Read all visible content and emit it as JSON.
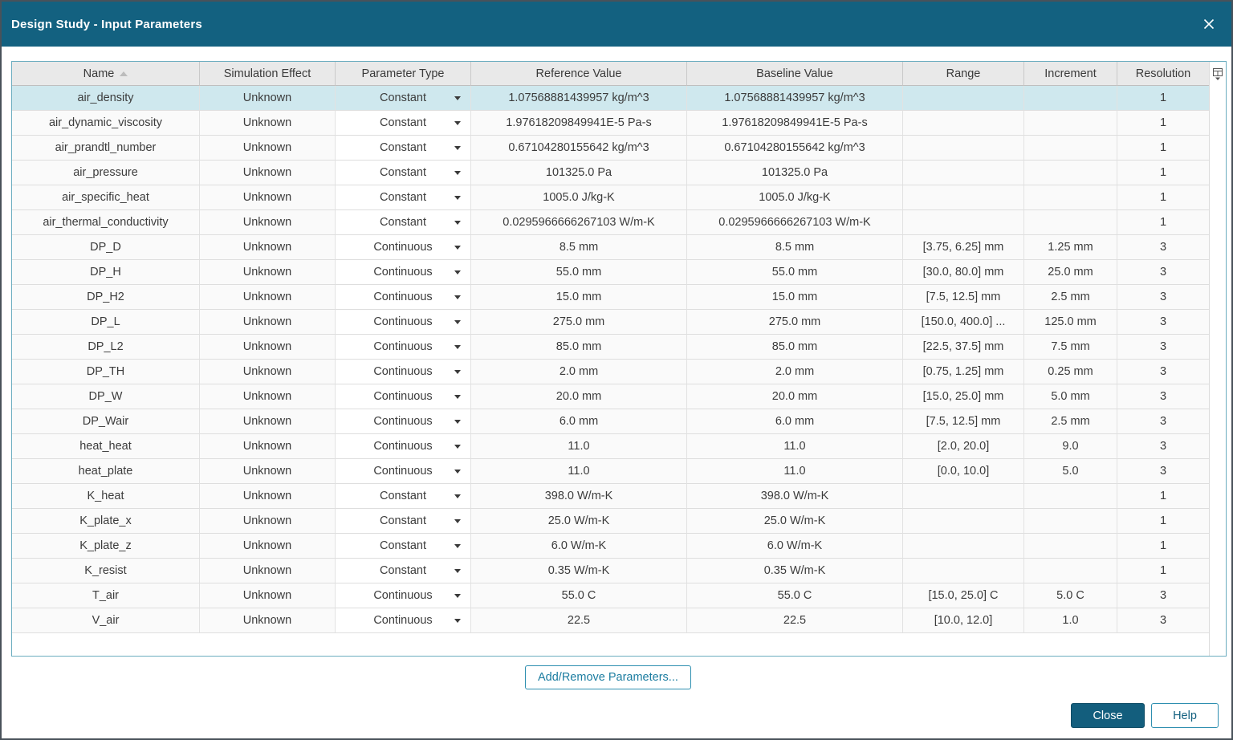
{
  "window": {
    "title": "Design Study - Input Parameters"
  },
  "colors": {
    "titlebar": "#136180",
    "header_bg": "#e9e9e9",
    "row_bg": "#fafafa",
    "selected_row_bg": "#cfe8ee",
    "table_border": "#6cadc0",
    "accent_teal": "#135e7d",
    "button_border": "#2e8fb0",
    "button_text": "#1b7ca0"
  },
  "icons": {
    "close": "close-icon",
    "sort_ascending": "sort-ascending-icon",
    "dropdown": "chevron-down-icon",
    "column_chooser": "column-chooser-icon"
  },
  "table": {
    "columns": [
      {
        "label": "Name",
        "sorted": "asc"
      },
      {
        "label": "Simulation Effect"
      },
      {
        "label": "Parameter Type"
      },
      {
        "label": "Reference Value"
      },
      {
        "label": "Baseline Value"
      },
      {
        "label": "Range"
      },
      {
        "label": "Increment"
      },
      {
        "label": "Resolution"
      }
    ],
    "rows": [
      {
        "name": "air_density",
        "simulation_effect": "Unknown",
        "parameter_type": "Constant",
        "reference_value": "1.07568881439957 kg/m^3",
        "baseline_value": "1.07568881439957 kg/m^3",
        "range": "",
        "increment": "",
        "resolution": "1",
        "selected": true
      },
      {
        "name": "air_dynamic_viscosity",
        "simulation_effect": "Unknown",
        "parameter_type": "Constant",
        "reference_value": "1.97618209849941E-5 Pa-s",
        "baseline_value": "1.97618209849941E-5 Pa-s",
        "range": "",
        "increment": "",
        "resolution": "1",
        "selected": false
      },
      {
        "name": "air_prandtl_number",
        "simulation_effect": "Unknown",
        "parameter_type": "Constant",
        "reference_value": "0.67104280155642 kg/m^3",
        "baseline_value": "0.67104280155642 kg/m^3",
        "range": "",
        "increment": "",
        "resolution": "1",
        "selected": false
      },
      {
        "name": "air_pressure",
        "simulation_effect": "Unknown",
        "parameter_type": "Constant",
        "reference_value": "101325.0 Pa",
        "baseline_value": "101325.0 Pa",
        "range": "",
        "increment": "",
        "resolution": "1",
        "selected": false
      },
      {
        "name": "air_specific_heat",
        "simulation_effect": "Unknown",
        "parameter_type": "Constant",
        "reference_value": "1005.0 J/kg-K",
        "baseline_value": "1005.0 J/kg-K",
        "range": "",
        "increment": "",
        "resolution": "1",
        "selected": false
      },
      {
        "name": "air_thermal_conductivity",
        "simulation_effect": "Unknown",
        "parameter_type": "Constant",
        "reference_value": "0.0295966666267103 W/m-K",
        "baseline_value": "0.0295966666267103 W/m-K",
        "range": "",
        "increment": "",
        "resolution": "1",
        "selected": false
      },
      {
        "name": "DP_D",
        "simulation_effect": "Unknown",
        "parameter_type": "Continuous",
        "reference_value": "8.5 mm",
        "baseline_value": "8.5 mm",
        "range": "[3.75, 6.25] mm",
        "increment": "1.25 mm",
        "resolution": "3",
        "selected": false
      },
      {
        "name": "DP_H",
        "simulation_effect": "Unknown",
        "parameter_type": "Continuous",
        "reference_value": "55.0 mm",
        "baseline_value": "55.0 mm",
        "range": "[30.0, 80.0] mm",
        "increment": "25.0 mm",
        "resolution": "3",
        "selected": false
      },
      {
        "name": "DP_H2",
        "simulation_effect": "Unknown",
        "parameter_type": "Continuous",
        "reference_value": "15.0 mm",
        "baseline_value": "15.0 mm",
        "range": "[7.5, 12.5] mm",
        "increment": "2.5 mm",
        "resolution": "3",
        "selected": false
      },
      {
        "name": "DP_L",
        "simulation_effect": "Unknown",
        "parameter_type": "Continuous",
        "reference_value": "275.0 mm",
        "baseline_value": "275.0 mm",
        "range": "[150.0, 400.0] ...",
        "increment": "125.0 mm",
        "resolution": "3",
        "selected": false
      },
      {
        "name": "DP_L2",
        "simulation_effect": "Unknown",
        "parameter_type": "Continuous",
        "reference_value": "85.0 mm",
        "baseline_value": "85.0 mm",
        "range": "[22.5, 37.5] mm",
        "increment": "7.5 mm",
        "resolution": "3",
        "selected": false
      },
      {
        "name": "DP_TH",
        "simulation_effect": "Unknown",
        "parameter_type": "Continuous",
        "reference_value": "2.0 mm",
        "baseline_value": "2.0 mm",
        "range": "[0.75, 1.25] mm",
        "increment": "0.25 mm",
        "resolution": "3",
        "selected": false
      },
      {
        "name": "DP_W",
        "simulation_effect": "Unknown",
        "parameter_type": "Continuous",
        "reference_value": "20.0 mm",
        "baseline_value": "20.0 mm",
        "range": "[15.0, 25.0] mm",
        "increment": "5.0 mm",
        "resolution": "3",
        "selected": false
      },
      {
        "name": "DP_Wair",
        "simulation_effect": "Unknown",
        "parameter_type": "Continuous",
        "reference_value": "6.0 mm",
        "baseline_value": "6.0 mm",
        "range": "[7.5, 12.5] mm",
        "increment": "2.5 mm",
        "resolution": "3",
        "selected": false
      },
      {
        "name": "heat_heat",
        "simulation_effect": "Unknown",
        "parameter_type": "Continuous",
        "reference_value": "11.0",
        "baseline_value": "11.0",
        "range": "[2.0, 20.0]",
        "increment": "9.0",
        "resolution": "3",
        "selected": false
      },
      {
        "name": "heat_plate",
        "simulation_effect": "Unknown",
        "parameter_type": "Continuous",
        "reference_value": "11.0",
        "baseline_value": "11.0",
        "range": "[0.0, 10.0]",
        "increment": "5.0",
        "resolution": "3",
        "selected": false
      },
      {
        "name": "K_heat",
        "simulation_effect": "Unknown",
        "parameter_type": "Constant",
        "reference_value": "398.0 W/m-K",
        "baseline_value": "398.0 W/m-K",
        "range": "",
        "increment": "",
        "resolution": "1",
        "selected": false
      },
      {
        "name": "K_plate_x",
        "simulation_effect": "Unknown",
        "parameter_type": "Constant",
        "reference_value": "25.0 W/m-K",
        "baseline_value": "25.0 W/m-K",
        "range": "",
        "increment": "",
        "resolution": "1",
        "selected": false
      },
      {
        "name": "K_plate_z",
        "simulation_effect": "Unknown",
        "parameter_type": "Constant",
        "reference_value": "6.0 W/m-K",
        "baseline_value": "6.0 W/m-K",
        "range": "",
        "increment": "",
        "resolution": "1",
        "selected": false
      },
      {
        "name": "K_resist",
        "simulation_effect": "Unknown",
        "parameter_type": "Constant",
        "reference_value": "0.35 W/m-K",
        "baseline_value": "0.35 W/m-K",
        "range": "",
        "increment": "",
        "resolution": "1",
        "selected": false
      },
      {
        "name": "T_air",
        "simulation_effect": "Unknown",
        "parameter_type": "Continuous",
        "reference_value": "55.0 C",
        "baseline_value": "55.0 C",
        "range": "[15.0, 25.0] C",
        "increment": "5.0 C",
        "resolution": "3",
        "selected": false
      },
      {
        "name": "V_air",
        "simulation_effect": "Unknown",
        "parameter_type": "Continuous",
        "reference_value": "22.5",
        "baseline_value": "22.5",
        "range": "[10.0, 12.0]",
        "increment": "1.0",
        "resolution": "3",
        "selected": false
      }
    ]
  },
  "buttons": {
    "add_remove": "Add/Remove Parameters...",
    "close": "Close",
    "help": "Help"
  }
}
